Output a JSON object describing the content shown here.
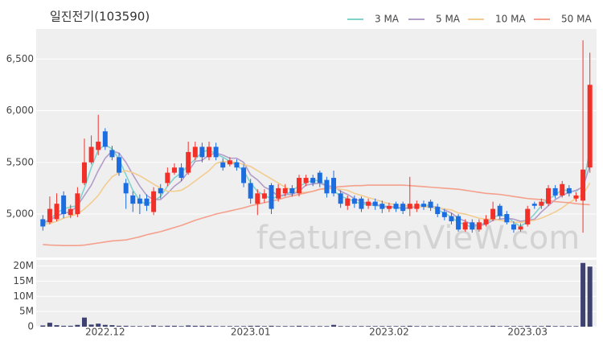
{
  "chart_data": {
    "type": "candlestick",
    "title": "일진전기(103590)",
    "watermark": "feature.enVieW.com",
    "categories": [
      null,
      null,
      null,
      null,
      null,
      null,
      null,
      null,
      null,
      "2022.12",
      null,
      null,
      null,
      null,
      null,
      null,
      null,
      null,
      null,
      null,
      null,
      null,
      null,
      null,
      null,
      null,
      null,
      null,
      null,
      null,
      "2023.01",
      null,
      null,
      null,
      null,
      null,
      null,
      null,
      null,
      null,
      null,
      null,
      null,
      null,
      null,
      null,
      null,
      null,
      null,
      null,
      "2023.02",
      null,
      null,
      null,
      null,
      null,
      null,
      null,
      null,
      null,
      null,
      null,
      null,
      null,
      null,
      null,
      null,
      null,
      null,
      null,
      "2023.03",
      null,
      null,
      null,
      null,
      null,
      null,
      null,
      null,
      null
    ],
    "open": [
      4950,
      4920,
      4950,
      5180,
      4990,
      5000,
      5300,
      5500,
      5620,
      5800,
      5620,
      5550,
      5300,
      5180,
      5150,
      5150,
      5020,
      5250,
      5300,
      5400,
      5450,
      5400,
      5550,
      5650,
      5550,
      5650,
      5500,
      5480,
      5500,
      5450,
      5300,
      5100,
      5150,
      5280,
      5150,
      5200,
      5250,
      5200,
      5300,
      5350,
      5400,
      5330,
      5350,
      5200,
      5080,
      5150,
      5150,
      5080,
      5120,
      5100,
      5050,
      5100,
      5100,
      5050,
      5050,
      5100,
      5120,
      5070,
      5020,
      4980,
      4980,
      4850,
      4920,
      4850,
      4900,
      4950,
      5080,
      5000,
      4900,
      4850,
      4900,
      5100,
      5080,
      5100,
      5250,
      5180,
      5250,
      5150,
      5130,
      5450
    ],
    "high": [
      4990,
      5170,
      5200,
      5220,
      5090,
      5260,
      5730,
      5760,
      5960,
      5830,
      5660,
      5590,
      5340,
      5220,
      5190,
      5190,
      5260,
      5290,
      5450,
      5490,
      5490,
      5700,
      5700,
      5690,
      5700,
      5690,
      5540,
      5550,
      5530,
      5480,
      5340,
      5240,
      5240,
      5300,
      5290,
      5290,
      5280,
      5380,
      5380,
      5380,
      5420,
      5360,
      5420,
      5230,
      5180,
      5180,
      5170,
      5150,
      5150,
      5130,
      5110,
      5120,
      5120,
      5360,
      5130,
      5130,
      5140,
      5100,
      5050,
      5010,
      5000,
      4950,
      4950,
      4950,
      4990,
      5120,
      5100,
      5030,
      4930,
      4910,
      5080,
      5120,
      5150,
      5280,
      5280,
      5320,
      5280,
      5210,
      6680,
      6560
    ],
    "low": [
      4840,
      4900,
      4930,
      4960,
      4960,
      4970,
      5280,
      5480,
      5570,
      5620,
      5520,
      5370,
      5050,
      5020,
      5000,
      5030,
      4990,
      5150,
      5270,
      5380,
      5320,
      5380,
      5520,
      5500,
      5520,
      5520,
      5420,
      5460,
      5420,
      5260,
      5100,
      4990,
      5110,
      5000,
      5120,
      5170,
      5170,
      5170,
      5270,
      5270,
      5260,
      5160,
      5170,
      5060,
      5040,
      5060,
      5020,
      5050,
      5040,
      5010,
      5020,
      5020,
      5000,
      4980,
      5020,
      5040,
      5030,
      4970,
      4940,
      4900,
      4830,
      4830,
      4820,
      4830,
      4880,
      4930,
      4950,
      4900,
      4820,
      4830,
      4880,
      5050,
      5050,
      5080,
      5150,
      5160,
      5170,
      5120,
      4820,
      5400
    ],
    "close": [
      4880,
      5050,
      5100,
      5000,
      5050,
      5200,
      5500,
      5650,
      5700,
      5650,
      5550,
      5400,
      5200,
      5100,
      5100,
      5080,
      5220,
      5200,
      5400,
      5450,
      5350,
      5600,
      5650,
      5550,
      5650,
      5550,
      5450,
      5520,
      5450,
      5300,
      5150,
      5200,
      5200,
      5050,
      5250,
      5250,
      5200,
      5350,
      5350,
      5300,
      5300,
      5200,
      5200,
      5100,
      5150,
      5100,
      5050,
      5120,
      5080,
      5050,
      5080,
      5050,
      5030,
      5100,
      5100,
      5070,
      5060,
      5000,
      4970,
      4930,
      4850,
      4920,
      4850,
      4920,
      4950,
      5050,
      4980,
      4920,
      4850,
      4880,
      5050,
      5080,
      5120,
      5250,
      5180,
      5290,
      5200,
      5180,
      5430,
      6250
    ],
    "up_color": "#f2302a",
    "down_color": "#1c6de0",
    "ylim": [
      4580,
      6790
    ],
    "yticks": [
      {
        "value": 5000,
        "label": "5,000"
      },
      {
        "value": 5500,
        "label": "5,500"
      },
      {
        "value": 6000,
        "label": "6,000"
      },
      {
        "value": 6500,
        "label": "6,500"
      }
    ],
    "series": [
      {
        "name": "3 MA",
        "color": "#7fd3cf",
        "values": [
          4900,
          4950,
          5010,
          5050,
          5070,
          5080,
          5250,
          5450,
          5620,
          5670,
          5630,
          5530,
          5380,
          5230,
          5130,
          5090,
          5130,
          5170,
          5270,
          5350,
          5400,
          5470,
          5530,
          5600,
          5620,
          5580,
          5550,
          5510,
          5470,
          5420,
          5300,
          5220,
          5180,
          5150,
          5170,
          5180,
          5230,
          5270,
          5300,
          5330,
          5320,
          5270,
          5230,
          5170,
          5150,
          5120,
          5100,
          5090,
          5080,
          5080,
          5070,
          5060,
          5050,
          5060,
          5080,
          5090,
          5080,
          5040,
          5010,
          4970,
          4920,
          4900,
          4870,
          4900,
          4910,
          4970,
          4990,
          4980,
          4920,
          4880,
          4930,
          5000,
          5080,
          5150,
          5180,
          5240,
          5220,
          5220,
          5270,
          5620
        ]
      },
      {
        "name": "5 MA",
        "color": "#b39dc9",
        "values": [
          4920,
          4940,
          4980,
          5010,
          5020,
          5080,
          5180,
          5280,
          5420,
          5540,
          5610,
          5590,
          5500,
          5380,
          5270,
          5180,
          5140,
          5140,
          5200,
          5270,
          5320,
          5410,
          5510,
          5520,
          5570,
          5590,
          5570,
          5540,
          5540,
          5500,
          5380,
          5330,
          5260,
          5230,
          5170,
          5190,
          5190,
          5220,
          5280,
          5290,
          5300,
          5270,
          5270,
          5220,
          5190,
          5150,
          5120,
          5100,
          5100,
          5070,
          5070,
          5070,
          5060,
          5060,
          5070,
          5070,
          5070,
          5070,
          5040,
          5010,
          4960,
          4930,
          4900,
          4890,
          4900,
          4940,
          4950,
          4960,
          4950,
          4930,
          4940,
          4950,
          5020,
          5080,
          5140,
          5180,
          5210,
          5230,
          5260,
          5470
        ]
      },
      {
        "name": "10 MA",
        "color": "#f3cc8f",
        "values": [
          4900,
          4910,
          4930,
          4960,
          4980,
          5000,
          5050,
          5110,
          5180,
          5280,
          5360,
          5400,
          5420,
          5400,
          5370,
          5330,
          5290,
          5250,
          5220,
          5220,
          5230,
          5270,
          5320,
          5370,
          5420,
          5490,
          5510,
          5500,
          5500,
          5480,
          5460,
          5420,
          5380,
          5340,
          5300,
          5260,
          5230,
          5210,
          5210,
          5220,
          5240,
          5240,
          5250,
          5240,
          5230,
          5200,
          5180,
          5160,
          5140,
          5120,
          5100,
          5090,
          5080,
          5080,
          5070,
          5070,
          5070,
          5060,
          5050,
          5040,
          5010,
          5000,
          4980,
          4960,
          4950,
          4950,
          4940,
          4930,
          4920,
          4920,
          4930,
          4940,
          4960,
          4990,
          5020,
          5060,
          5110,
          5150,
          5190,
          5300
        ]
      },
      {
        "name": "50 MA",
        "color": "#f5a08c",
        "values": [
          4705,
          4700,
          4698,
          4695,
          4695,
          4695,
          4700,
          4710,
          4720,
          4730,
          4740,
          4745,
          4750,
          4765,
          4780,
          4800,
          4815,
          4830,
          4850,
          4870,
          4890,
          4915,
          4940,
          4960,
          4980,
          5000,
          5015,
          5030,
          5045,
          5060,
          5080,
          5095,
          5110,
          5125,
          5140,
          5160,
          5175,
          5190,
          5205,
          5220,
          5240,
          5250,
          5260,
          5265,
          5270,
          5275,
          5275,
          5280,
          5280,
          5280,
          5280,
          5280,
          5280,
          5275,
          5270,
          5265,
          5260,
          5255,
          5250,
          5245,
          5240,
          5230,
          5220,
          5210,
          5200,
          5195,
          5190,
          5180,
          5170,
          5160,
          5150,
          5145,
          5140,
          5130,
          5120,
          5115,
          5110,
          5100,
          5095,
          5090
        ]
      }
    ],
    "volume": {
      "color": "#3d4270",
      "values": [
        400000,
        1300000,
        500000,
        300000,
        300000,
        600000,
        3000000,
        700000,
        1000000,
        600000,
        500000,
        300000,
        300000,
        200000,
        200000,
        200000,
        400000,
        200000,
        300000,
        300000,
        200000,
        400000,
        300000,
        300000,
        300000,
        200000,
        200000,
        200000,
        200000,
        200000,
        300000,
        300000,
        200000,
        300000,
        200000,
        200000,
        200000,
        300000,
        200000,
        200000,
        200000,
        200000,
        600000,
        200000,
        200000,
        200000,
        200000,
        200000,
        200000,
        200000,
        200000,
        200000,
        200000,
        300000,
        200000,
        200000,
        200000,
        200000,
        200000,
        200000,
        200000,
        200000,
        200000,
        200000,
        200000,
        300000,
        200000,
        200000,
        200000,
        200000,
        300000,
        200000,
        200000,
        300000,
        200000,
        200000,
        200000,
        200000,
        21000000,
        19800000
      ],
      "ylim": [
        0,
        22000000
      ],
      "yticks": [
        {
          "value": 0,
          "label": "0"
        },
        {
          "value": 5000000,
          "label": "5M"
        },
        {
          "value": 10000000,
          "label": "10M"
        },
        {
          "value": 15000000,
          "label": "15M"
        },
        {
          "value": 20000000,
          "label": "20M"
        }
      ]
    }
  }
}
